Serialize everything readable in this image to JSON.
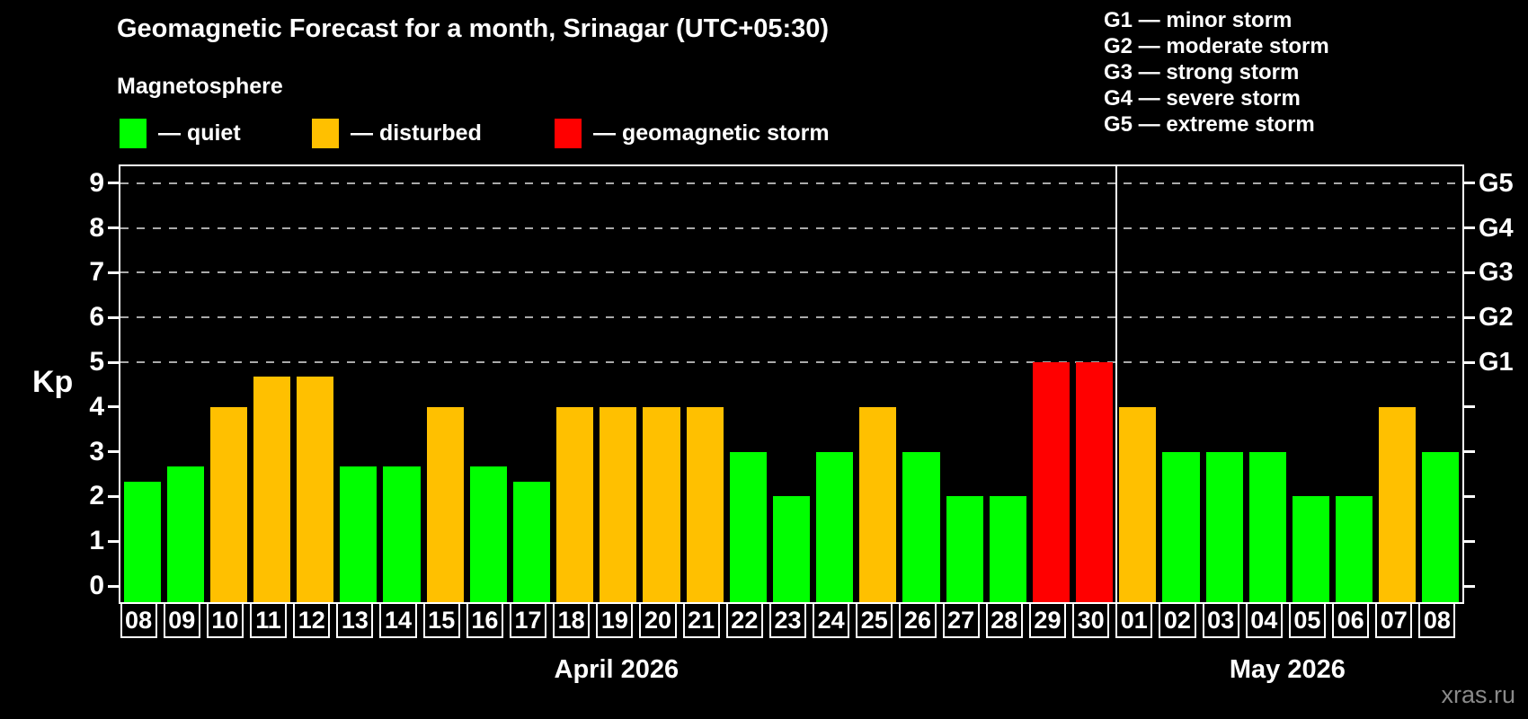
{
  "title": "Geomagnetic Forecast for a month, Srinagar (UTC+05:30)",
  "subtitle": "Magnetosphere",
  "watermark": "xras.ru",
  "colors": {
    "quiet": "#00ff00",
    "disturbed": "#ffc000",
    "storm": "#ff0000",
    "grid": "#aaaaaa",
    "axis": "#ffffff",
    "watermark_gray": "#8a8a8a"
  },
  "legend": [
    {
      "level": "quiet",
      "label": "— quiet"
    },
    {
      "level": "disturbed",
      "label": "— disturbed"
    },
    {
      "level": "storm",
      "label": "— geomagnetic storm"
    }
  ],
  "g_scale_legend": [
    "G1 — minor storm",
    "G2 — moderate storm",
    "G3 — strong storm",
    "G4 — severe storm",
    "G5 — extreme storm"
  ],
  "chart_data": {
    "type": "bar",
    "title": "Geomagnetic Forecast for a month, Srinagar (UTC+05:30)",
    "xlabel": "",
    "ylabel": "Kp",
    "ylim": [
      0,
      9
    ],
    "yticks": [
      0,
      1,
      2,
      3,
      4,
      5,
      6,
      7,
      8,
      9
    ],
    "grid": "dashed horizontal lines at Kp 5-9 only",
    "right_axis_labels": [
      {
        "label": "G1",
        "kp": 5
      },
      {
        "label": "G2",
        "kp": 6
      },
      {
        "label": "G3",
        "kp": 7
      },
      {
        "label": "G4",
        "kp": 8
      },
      {
        "label": "G5",
        "kp": 9
      }
    ],
    "categories": [
      "08",
      "09",
      "10",
      "11",
      "12",
      "13",
      "14",
      "15",
      "16",
      "17",
      "18",
      "19",
      "20",
      "21",
      "22",
      "23",
      "24",
      "25",
      "26",
      "27",
      "28",
      "29",
      "30",
      "01",
      "02",
      "03",
      "04",
      "05",
      "06",
      "07",
      "08"
    ],
    "values": [
      2.33,
      2.67,
      4,
      4.67,
      4.67,
      2.67,
      2.67,
      4,
      2.67,
      2.33,
      4,
      4,
      4,
      4,
      3,
      2,
      3,
      4,
      3,
      2,
      2,
      5,
      5,
      4,
      3,
      3,
      3,
      2,
      2,
      4,
      3
    ],
    "levels": [
      "quiet",
      "quiet",
      "disturbed",
      "disturbed",
      "disturbed",
      "quiet",
      "quiet",
      "disturbed",
      "quiet",
      "quiet",
      "disturbed",
      "disturbed",
      "disturbed",
      "disturbed",
      "quiet",
      "quiet",
      "quiet",
      "disturbed",
      "quiet",
      "quiet",
      "quiet",
      "storm",
      "storm",
      "disturbed",
      "quiet",
      "quiet",
      "quiet",
      "quiet",
      "quiet",
      "disturbed",
      "quiet"
    ],
    "months": [
      {
        "label": "April 2026",
        "days": 23
      },
      {
        "label": "May 2026",
        "days": 8
      }
    ],
    "legend_position": "top"
  }
}
